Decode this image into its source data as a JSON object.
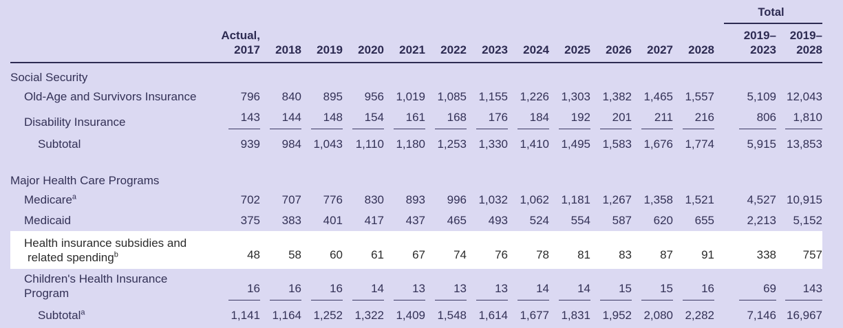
{
  "table": {
    "total_label": "Total",
    "actual_label": "Actual,",
    "years": [
      "2017",
      "2018",
      "2019",
      "2020",
      "2021",
      "2022",
      "2023",
      "2024",
      "2025",
      "2026",
      "2027",
      "2028"
    ],
    "total_headers": [
      {
        "line1": "2019–",
        "line2": "2023"
      },
      {
        "line1": "2019–",
        "line2": "2028"
      }
    ],
    "sections": [
      {
        "title": "Social Security",
        "rows": [
          {
            "label": "Old-Age and Survivors Insurance",
            "sup": "",
            "values": [
              "796",
              "840",
              "895",
              "956",
              "1,019",
              "1,085",
              "1,155",
              "1,226",
              "1,303",
              "1,382",
              "1,465",
              "1,557"
            ],
            "totals": [
              "5,109",
              "12,043"
            ]
          },
          {
            "label": "Disability Insurance",
            "sup": "",
            "ruled": true,
            "values": [
              "143",
              "144",
              "148",
              "154",
              "161",
              "168",
              "176",
              "184",
              "192",
              "201",
              "211",
              "216"
            ],
            "totals": [
              "806",
              "1,810"
            ]
          },
          {
            "label": "Subtotal",
            "sup": "",
            "subtotal": true,
            "values": [
              "939",
              "984",
              "1,043",
              "1,110",
              "1,180",
              "1,253",
              "1,330",
              "1,410",
              "1,495",
              "1,583",
              "1,676",
              "1,774"
            ],
            "totals": [
              "5,915",
              "13,853"
            ]
          }
        ]
      },
      {
        "title": "Major Health Care Programs",
        "rows": [
          {
            "label": "Medicare",
            "sup": "a",
            "values": [
              "702",
              "707",
              "776",
              "830",
              "893",
              "996",
              "1,032",
              "1,062",
              "1,181",
              "1,267",
              "1,358",
              "1,521"
            ],
            "totals": [
              "4,527",
              "10,915"
            ]
          },
          {
            "label": "Medicaid",
            "sup": "",
            "values": [
              "375",
              "383",
              "401",
              "417",
              "437",
              "465",
              "493",
              "524",
              "554",
              "587",
              "620",
              "655"
            ],
            "totals": [
              "2,213",
              "5,152"
            ]
          },
          {
            "label_line1": "Health insurance subsidies and",
            "label_line2": "related spending",
            "sup": "b",
            "highlight": true,
            "values": [
              "48",
              "58",
              "60",
              "61",
              "67",
              "74",
              "76",
              "78",
              "81",
              "83",
              "87",
              "91"
            ],
            "totals": [
              "338",
              "757"
            ]
          },
          {
            "label": "Children's Health Insurance Program",
            "sup": "",
            "ruled": true,
            "values": [
              "16",
              "16",
              "16",
              "14",
              "13",
              "13",
              "13",
              "14",
              "14",
              "15",
              "15",
              "16"
            ],
            "totals": [
              "69",
              "143"
            ]
          },
          {
            "label": "Subtotal",
            "sup": "a",
            "subtotal": true,
            "values": [
              "1,141",
              "1,164",
              "1,252",
              "1,322",
              "1,409",
              "1,548",
              "1,614",
              "1,677",
              "1,831",
              "1,952",
              "2,080",
              "2,282"
            ],
            "totals": [
              "7,146",
              "16,967"
            ]
          }
        ]
      }
    ]
  }
}
